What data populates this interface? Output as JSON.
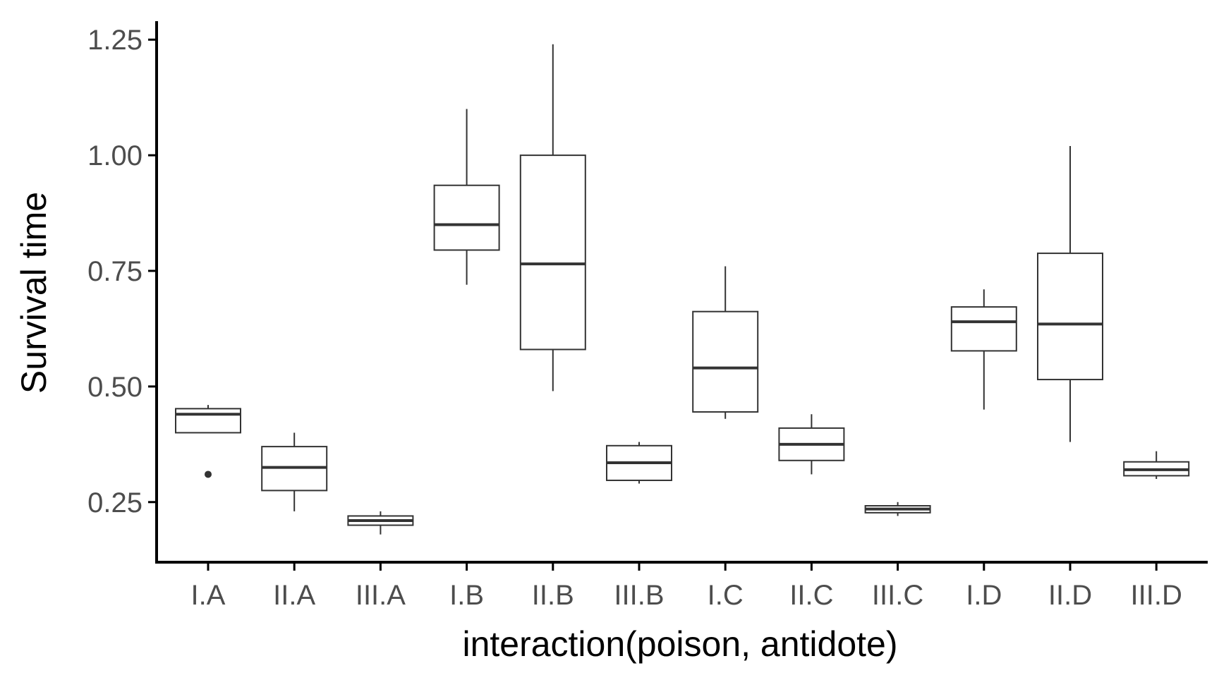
{
  "chart_data": {
    "type": "boxplot",
    "xlabel": "interaction(poison, antidote)",
    "ylabel": "Survival time",
    "ylim": [
      0.12,
      1.29
    ],
    "yticks": [
      0.25,
      0.5,
      0.75,
      1.0,
      1.25
    ],
    "ytick_labels": [
      "0.25",
      "0.50",
      "0.75",
      "1.00",
      "1.25"
    ],
    "grid": false,
    "categories": [
      "I.A",
      "II.A",
      "III.A",
      "I.B",
      "II.B",
      "III.B",
      "I.C",
      "II.C",
      "III.C",
      "I.D",
      "II.D",
      "III.D"
    ],
    "boxes": [
      {
        "category": "I.A",
        "whisker_low": 0.4,
        "q1": 0.4,
        "median": 0.44,
        "q3": 0.452,
        "whisker_high": 0.46,
        "outliers": [
          0.31
        ]
      },
      {
        "category": "II.A",
        "whisker_low": 0.23,
        "q1": 0.275,
        "median": 0.325,
        "q3": 0.37,
        "whisker_high": 0.4,
        "outliers": []
      },
      {
        "category": "III.A",
        "whisker_low": 0.18,
        "q1": 0.2,
        "median": 0.21,
        "q3": 0.22,
        "whisker_high": 0.23,
        "outliers": []
      },
      {
        "category": "I.B",
        "whisker_low": 0.72,
        "q1": 0.795,
        "median": 0.85,
        "q3": 0.935,
        "whisker_high": 1.1,
        "outliers": []
      },
      {
        "category": "II.B",
        "whisker_low": 0.49,
        "q1": 0.58,
        "median": 0.765,
        "q3": 1.0,
        "whisker_high": 1.24,
        "outliers": []
      },
      {
        "category": "III.B",
        "whisker_low": 0.29,
        "q1": 0.297,
        "median": 0.335,
        "q3": 0.372,
        "whisker_high": 0.38,
        "outliers": []
      },
      {
        "category": "I.C",
        "whisker_low": 0.43,
        "q1": 0.445,
        "median": 0.54,
        "q3": 0.662,
        "whisker_high": 0.76,
        "outliers": []
      },
      {
        "category": "II.C",
        "whisker_low": 0.31,
        "q1": 0.34,
        "median": 0.375,
        "q3": 0.41,
        "whisker_high": 0.44,
        "outliers": []
      },
      {
        "category": "III.C",
        "whisker_low": 0.22,
        "q1": 0.227,
        "median": 0.235,
        "q3": 0.242,
        "whisker_high": 0.25,
        "outliers": []
      },
      {
        "category": "I.D",
        "whisker_low": 0.45,
        "q1": 0.577,
        "median": 0.64,
        "q3": 0.672,
        "whisker_high": 0.71,
        "outliers": []
      },
      {
        "category": "II.D",
        "whisker_low": 0.38,
        "q1": 0.515,
        "median": 0.635,
        "q3": 0.788,
        "whisker_high": 1.02,
        "outliers": []
      },
      {
        "category": "III.D",
        "whisker_low": 0.3,
        "q1": 0.307,
        "median": 0.32,
        "q3": 0.337,
        "whisker_high": 0.36,
        "outliers": []
      }
    ]
  }
}
